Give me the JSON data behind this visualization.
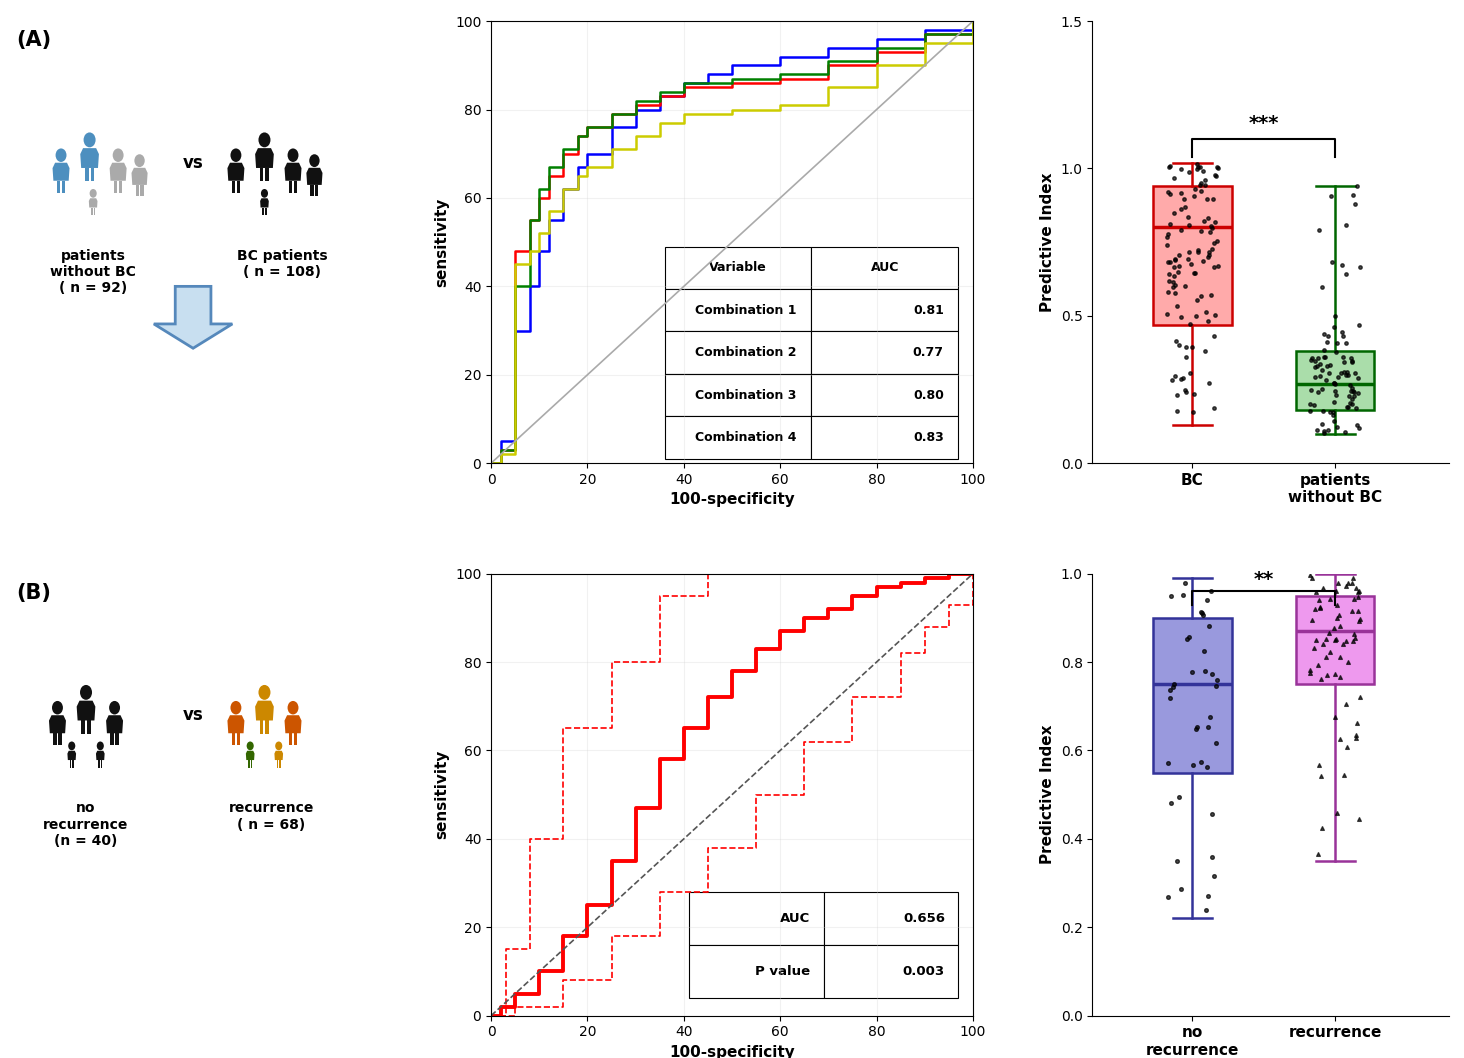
{
  "panel_A_label": "(A)",
  "panel_B_label": "(B)",
  "roc_A": {
    "xlabel": "100-specificity",
    "ylabel": "sensitivity",
    "xlim": [
      0,
      100
    ],
    "ylim": [
      0,
      100
    ],
    "xticks": [
      0,
      20,
      40,
      60,
      80,
      100
    ],
    "yticks": [
      0,
      20,
      40,
      60,
      80,
      100
    ],
    "table_vars": [
      "Variable",
      "Combination 1",
      "Combination 2",
      "Combination 3",
      "Combination 4"
    ],
    "table_aucs": [
      "AUC",
      "0.81",
      "0.77",
      "0.80",
      "0.83"
    ],
    "line_colors": [
      "blue",
      "red",
      "green",
      "#cccc00"
    ],
    "diagonal_color": "#aaaaaa"
  },
  "roc_B": {
    "xlabel": "100-specificity",
    "ylabel": "sensitivity",
    "xlim": [
      0,
      100
    ],
    "ylim": [
      0,
      100
    ],
    "xticks": [
      0,
      20,
      40,
      60,
      80,
      100
    ],
    "yticks": [
      0,
      20,
      40,
      60,
      80,
      100
    ],
    "table_vars": [
      "AUC",
      "P value"
    ],
    "table_vals": [
      "0.656",
      "0.003"
    ],
    "diagonal_color": "#555555",
    "diagonal_style": "--"
  },
  "box_A": {
    "ylabel": "Predictive Index",
    "ylim": [
      0.0,
      1.5
    ],
    "yticks": [
      0.0,
      0.5,
      1.0,
      1.5
    ],
    "categories": [
      "BC",
      "patients\nwithout BC"
    ],
    "box1_facecolor": "#ffaaaa",
    "box1_edgecolor": "#cc0000",
    "box2_facecolor": "#aaddaa",
    "box2_edgecolor": "#006600",
    "bc_median": 0.8,
    "bc_q1": 0.47,
    "bc_q3": 0.94,
    "bc_whislo": 0.13,
    "bc_whishi": 1.02,
    "nbc_median": 0.27,
    "nbc_q1": 0.18,
    "nbc_q3": 0.38,
    "nbc_whislo": 0.1,
    "nbc_whishi": 0.94,
    "significance": "***"
  },
  "box_B": {
    "ylabel": "Predictive Index",
    "ylim": [
      0.0,
      1.0
    ],
    "yticks": [
      0.0,
      0.2,
      0.4,
      0.6,
      0.8,
      1.0
    ],
    "categories": [
      "no\nrecurrence",
      "recurrence"
    ],
    "box1_facecolor": "#9999dd",
    "box1_edgecolor": "#333399",
    "box2_facecolor": "#ee99ee",
    "box2_edgecolor": "#993399",
    "nr_median": 0.75,
    "nr_q1": 0.55,
    "nr_q3": 0.9,
    "nr_whislo": 0.22,
    "nr_whishi": 0.99,
    "r_median": 0.87,
    "r_q1": 0.75,
    "r_q3": 0.95,
    "r_whislo": 0.35,
    "r_whishi": 1.0,
    "significance": "**"
  },
  "blue_person": "#4d8fbf",
  "grey_person": "#aaaaaa",
  "black_person": "#111111",
  "orange_person": "#cc5500",
  "gold_person": "#cc8800",
  "green_person": "#336600"
}
